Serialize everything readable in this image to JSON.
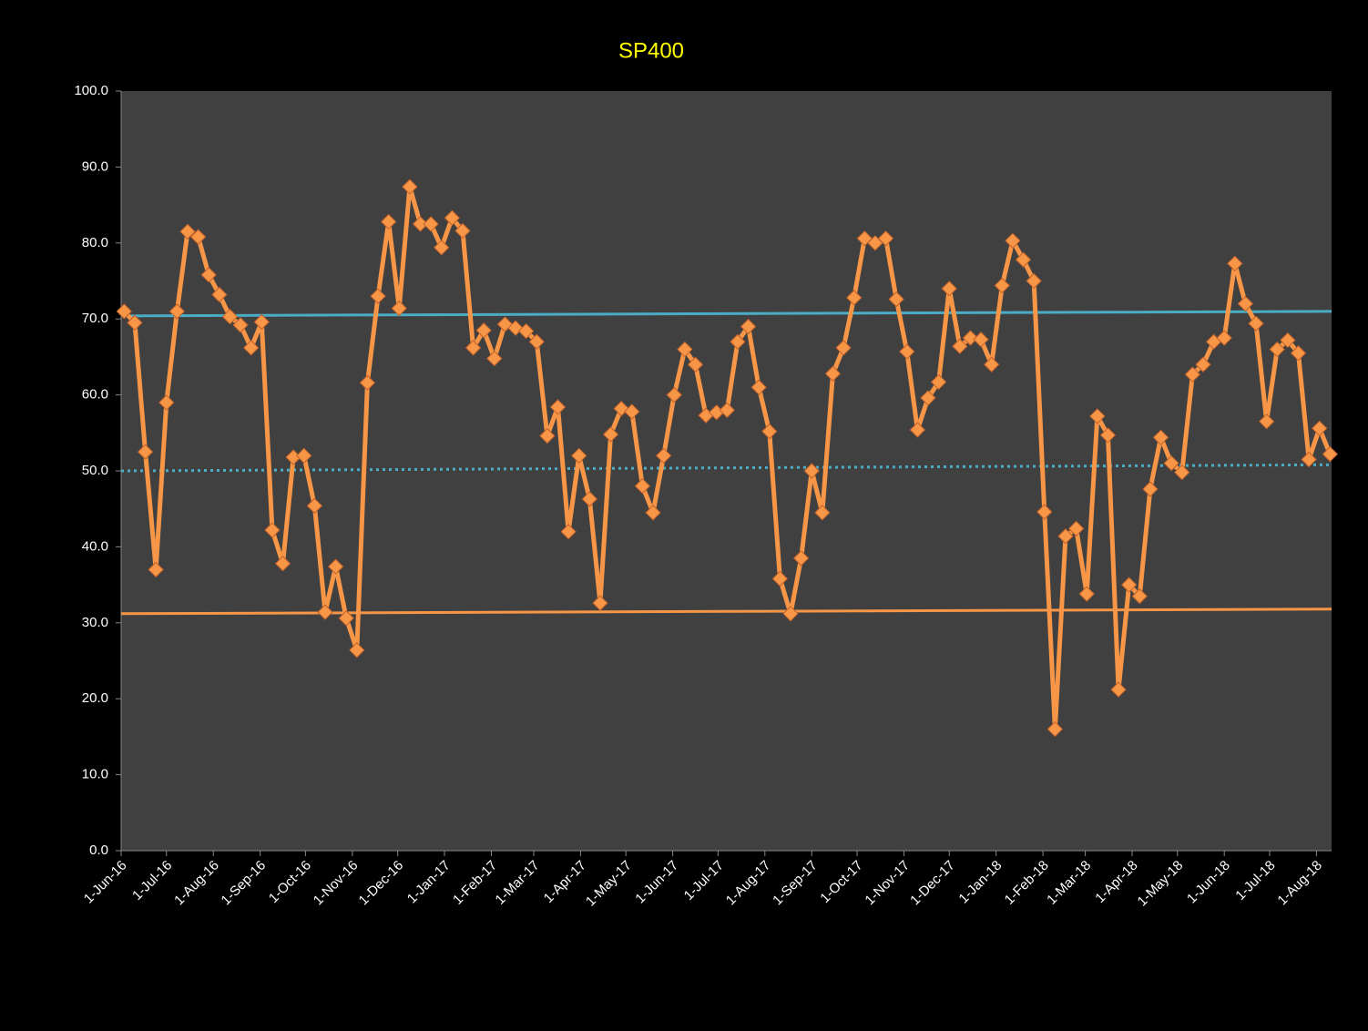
{
  "chart_data": {
    "type": "line",
    "title": "SP400",
    "title_color": "#ffff00",
    "background": "#000000",
    "plot_background": "#404040",
    "x": [
      "2016-06-03",
      "2016-06-10",
      "2016-06-17",
      "2016-06-24",
      "2016-07-01",
      "2016-07-08",
      "2016-07-15",
      "2016-07-22",
      "2016-07-29",
      "2016-08-05",
      "2016-08-12",
      "2016-08-19",
      "2016-08-26",
      "2016-09-02",
      "2016-09-09",
      "2016-09-16",
      "2016-09-23",
      "2016-09-30",
      "2016-10-07",
      "2016-10-14",
      "2016-10-21",
      "2016-10-28",
      "2016-11-04",
      "2016-11-11",
      "2016-11-18",
      "2016-11-25",
      "2016-12-02",
      "2016-12-09",
      "2016-12-16",
      "2016-12-23",
      "2016-12-30",
      "2017-01-06",
      "2017-01-13",
      "2017-01-20",
      "2017-01-27",
      "2017-02-03",
      "2017-02-10",
      "2017-02-17",
      "2017-02-24",
      "2017-03-03",
      "2017-03-10",
      "2017-03-17",
      "2017-03-24",
      "2017-03-31",
      "2017-04-07",
      "2017-04-14",
      "2017-04-21",
      "2017-04-28",
      "2017-05-05",
      "2017-05-12",
      "2017-05-19",
      "2017-05-26",
      "2017-06-02",
      "2017-06-09",
      "2017-06-16",
      "2017-06-23",
      "2017-06-30",
      "2017-07-07",
      "2017-07-14",
      "2017-07-21",
      "2017-07-28",
      "2017-08-04",
      "2017-08-11",
      "2017-08-18",
      "2017-08-25",
      "2017-09-01",
      "2017-09-08",
      "2017-09-15",
      "2017-09-22",
      "2017-09-29",
      "2017-10-06",
      "2017-10-13",
      "2017-10-20",
      "2017-10-27",
      "2017-11-03",
      "2017-11-10",
      "2017-11-17",
      "2017-11-24",
      "2017-12-01",
      "2017-12-08",
      "2017-12-15",
      "2017-12-22",
      "2017-12-29",
      "2018-01-05",
      "2018-01-12",
      "2018-01-19",
      "2018-01-26",
      "2018-02-02",
      "2018-02-09",
      "2018-02-16",
      "2018-02-23",
      "2018-03-02",
      "2018-03-09",
      "2018-03-16",
      "2018-03-23",
      "2018-03-30",
      "2018-04-06",
      "2018-04-13",
      "2018-04-20",
      "2018-04-27",
      "2018-05-04",
      "2018-05-11",
      "2018-05-18",
      "2018-05-25",
      "2018-06-01",
      "2018-06-08",
      "2018-06-15",
      "2018-06-22",
      "2018-06-29",
      "2018-07-06",
      "2018-07-13",
      "2018-07-20",
      "2018-07-27",
      "2018-08-03",
      "2018-08-10"
    ],
    "series": [
      {
        "color": "#f79646",
        "values": [
          71.0,
          69.5,
          52.5,
          37.0,
          59.0,
          71.0,
          81.5,
          80.8,
          75.8,
          73.2,
          70.3,
          69.2,
          66.2,
          69.6,
          42.2,
          37.8,
          51.8,
          52.0,
          45.4,
          31.4,
          37.4,
          30.6,
          26.4,
          61.6,
          73.0,
          82.8,
          71.4,
          87.4,
          82.5,
          82.5,
          79.4,
          83.3,
          81.6,
          66.2,
          68.5,
          64.8,
          69.3,
          68.8,
          68.4,
          67.0,
          54.6,
          58.4,
          42.0,
          52.0,
          46.3,
          32.6,
          54.8,
          58.2,
          57.8,
          48.0,
          44.5,
          52.0,
          60.0,
          66.0,
          64.0,
          57.3,
          57.7,
          58.0,
          67.0,
          69.0,
          61.0,
          55.2,
          35.8,
          31.2,
          38.5,
          50.0,
          44.5,
          62.8,
          66.2,
          72.8,
          80.6,
          80.0,
          80.6,
          72.6,
          65.7,
          55.4,
          59.6,
          61.7,
          74.0,
          66.4,
          67.5,
          67.3,
          64.0,
          74.4,
          80.3,
          77.8,
          75.0,
          44.6,
          16.0,
          41.4,
          42.4,
          33.8,
          57.2,
          54.7,
          21.2,
          35.0,
          33.5,
          47.6,
          54.4,
          51.0,
          49.8,
          62.7,
          64.0,
          67.0,
          67.5,
          77.3,
          72.0,
          69.4,
          56.5,
          66.0,
          67.2,
          65.5,
          51.5,
          55.6,
          52.2
        ]
      }
    ],
    "reference_lines": [
      {
        "color": "#4bacc6",
        "style": "solid",
        "values": [
          70.4,
          71.0
        ]
      },
      {
        "color": "#4bacc6",
        "style": "dotted",
        "values": [
          50.0,
          50.8
        ]
      },
      {
        "color": "#f79646",
        "style": "solid",
        "values": [
          31.2,
          31.8
        ]
      }
    ],
    "xlim": [
      "2016-06-01",
      "2018-08-11"
    ],
    "xticks": [
      {
        "value": "2016-06-01",
        "label": "1-Jun-16"
      },
      {
        "value": "2016-07-01",
        "label": "1-Jul-16"
      },
      {
        "value": "2016-08-01",
        "label": "1-Aug-16"
      },
      {
        "value": "2016-09-01",
        "label": "1-Sep-16"
      },
      {
        "value": "2016-10-01",
        "label": "1-Oct-16"
      },
      {
        "value": "2016-11-01",
        "label": "1-Nov-16"
      },
      {
        "value": "2016-12-01",
        "label": "1-Dec-16"
      },
      {
        "value": "2017-01-01",
        "label": "1-Jan-17"
      },
      {
        "value": "2017-02-01",
        "label": "1-Feb-17"
      },
      {
        "value": "2017-03-01",
        "label": "1-Mar-17"
      },
      {
        "value": "2017-04-01",
        "label": "1-Apr-17"
      },
      {
        "value": "2017-05-01",
        "label": "1-May-17"
      },
      {
        "value": "2017-06-01",
        "label": "1-Jun-17"
      },
      {
        "value": "2017-07-01",
        "label": "1-Jul-17"
      },
      {
        "value": "2017-08-01",
        "label": "1-Aug-17"
      },
      {
        "value": "2017-09-01",
        "label": "1-Sep-17"
      },
      {
        "value": "2017-10-01",
        "label": "1-Oct-17"
      },
      {
        "value": "2017-11-01",
        "label": "1-Nov-17"
      },
      {
        "value": "2017-12-01",
        "label": "1-Dec-17"
      },
      {
        "value": "2018-01-01",
        "label": "1-Jan-18"
      },
      {
        "value": "2018-02-01",
        "label": "1-Feb-18"
      },
      {
        "value": "2018-03-01",
        "label": "1-Mar-18"
      },
      {
        "value": "2018-04-01",
        "label": "1-Apr-18"
      },
      {
        "value": "2018-05-01",
        "label": "1-May-18"
      },
      {
        "value": "2018-06-01",
        "label": "1-Jun-18"
      },
      {
        "value": "2018-07-01",
        "label": "1-Jul-18"
      },
      {
        "value": "2018-08-01",
        "label": "1-Aug-18"
      }
    ],
    "ylim": [
      0,
      100
    ],
    "yticks": [
      {
        "value": 0,
        "label": "0.0"
      },
      {
        "value": 10,
        "label": "10.0"
      },
      {
        "value": 20,
        "label": "20.0"
      },
      {
        "value": 30,
        "label": "30.0"
      },
      {
        "value": 40,
        "label": "40.0"
      },
      {
        "value": 50,
        "label": "50.0"
      },
      {
        "value": 60,
        "label": "60.0"
      },
      {
        "value": 70,
        "label": "70.0"
      },
      {
        "value": 80,
        "label": "80.0"
      },
      {
        "value": 90,
        "label": "90.0"
      },
      {
        "value": 100,
        "label": "100.0"
      }
    ],
    "marker": "diamond"
  }
}
